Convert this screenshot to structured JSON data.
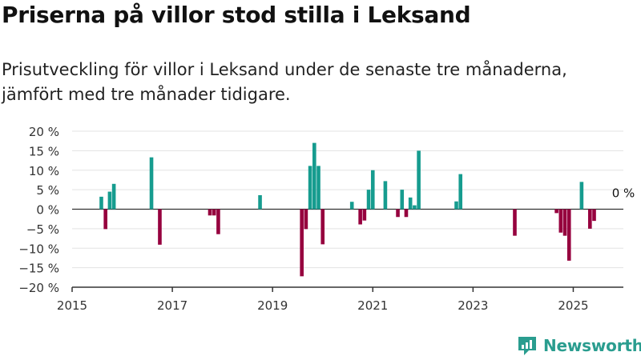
{
  "title": "Priserna på villor stod stilla i Leksand",
  "subtitle": "Prisutveckling för villor i Leksand under de senaste tre månaderna, jämfört med tre månader tidigare.",
  "brand": {
    "name": "Newsworthy",
    "icon": "newsworthy-logo-icon"
  },
  "colors": {
    "positive": "#169c8f",
    "negative": "#96003e",
    "axis": "#333333",
    "grid": "#e3e3e3",
    "brand": "#2a9d8f"
  },
  "chart_data": {
    "type": "bar",
    "title": "Priserna på villor stod stilla i Leksand",
    "subtitle": "Prisutveckling för villor i Leksand under de senaste tre månaderna, jämfört med tre månader tidigare.",
    "xlabel": "",
    "ylabel": "",
    "x_ticks": [
      "2015",
      "2017",
      "2019",
      "2021",
      "2023",
      "2025"
    ],
    "y_ticks": [
      "20 %",
      "15 %",
      "10 %",
      "5 %",
      "0 %",
      "−5 %",
      "−10 %",
      "−15 %",
      "−20 %"
    ],
    "xlim": [
      "2015-01",
      "2026-01"
    ],
    "ylim": [
      -20,
      20
    ],
    "grid": true,
    "annotation": {
      "date": "2025-07",
      "text": "0 %"
    },
    "dates": [
      "2015-08",
      "2015-09",
      "2015-10",
      "2015-11",
      "2016-08",
      "2016-10",
      "2017-10",
      "2017-11",
      "2017-12",
      "2018-10",
      "2019-08",
      "2019-09",
      "2019-10",
      "2019-11",
      "2019-12",
      "2020-01",
      "2020-08",
      "2020-10",
      "2020-11",
      "2020-12",
      "2021-01",
      "2021-04",
      "2021-07",
      "2021-08",
      "2021-09",
      "2021-10",
      "2021-11",
      "2021-12",
      "2022-09",
      "2022-10",
      "2023-11",
      "2024-09",
      "2024-10",
      "2024-11",
      "2024-12",
      "2025-03",
      "2025-05",
      "2025-06",
      "2025-07"
    ],
    "values": [
      3.2,
      -5.1,
      4.5,
      6.5,
      13.3,
      -9.1,
      -1.6,
      -1.6,
      -6.4,
      3.6,
      -17.2,
      -5.1,
      11.1,
      17.0,
      11.1,
      -9.0,
      1.9,
      -3.9,
      -2.9,
      5.0,
      10.0,
      7.2,
      -2.0,
      5.0,
      -2.0,
      3.0,
      1.0,
      15.0,
      2.0,
      9.0,
      -6.8,
      -1.0,
      -6.0,
      -6.8,
      -13.2,
      7.0,
      -5.0,
      -3.0,
      0
    ]
  }
}
